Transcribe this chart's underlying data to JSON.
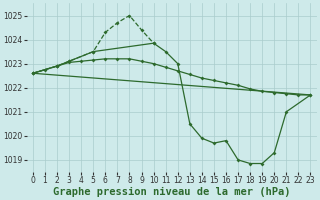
{
  "title": "Graphe pression niveau de la mer (hPa)",
  "bg_color": "#ceeaea",
  "grid_color": "#aacccc",
  "line_color": "#2d6a2d",
  "ylim": [
    1018.5,
    1025.5
  ],
  "yticks": [
    1019,
    1020,
    1021,
    1022,
    1023,
    1024,
    1025
  ],
  "xlim": [
    -0.5,
    23.5
  ],
  "line1_x": [
    0,
    1,
    2,
    3,
    4,
    5,
    6,
    7,
    8,
    9,
    10,
    11,
    12,
    13,
    14,
    15,
    16,
    17,
    18,
    19,
    20,
    21,
    22,
    23
  ],
  "line1_y": [
    1022.6,
    1022.75,
    1022.9,
    1023.05,
    1023.1,
    1023.15,
    1023.2,
    1023.2,
    1023.2,
    1023.1,
    1023.0,
    1022.85,
    1022.7,
    1022.55,
    1022.4,
    1022.3,
    1022.2,
    1022.1,
    1021.95,
    1021.85,
    1021.8,
    1021.75,
    1021.7,
    1021.7
  ],
  "line2_x": [
    0,
    2,
    3,
    5,
    6,
    7,
    8,
    9,
    10
  ],
  "line2_y": [
    1022.6,
    1022.9,
    1023.1,
    1023.5,
    1024.3,
    1024.7,
    1025.0,
    1024.4,
    1023.85
  ],
  "line3_x": [
    0,
    2,
    3,
    5,
    10,
    11,
    12,
    13,
    14,
    15,
    16,
    17,
    18,
    19,
    20,
    21,
    23
  ],
  "line3_y": [
    1022.6,
    1022.9,
    1023.1,
    1023.5,
    1023.85,
    1023.5,
    1023.0,
    1020.5,
    1019.9,
    1019.7,
    1019.8,
    1019.0,
    1018.85,
    1018.85,
    1019.3,
    1021.0,
    1021.7
  ],
  "line4_x": [
    0,
    23
  ],
  "line4_y": [
    1022.6,
    1021.7
  ],
  "tick_fontsize": 5.5,
  "title_fontsize": 7.5
}
